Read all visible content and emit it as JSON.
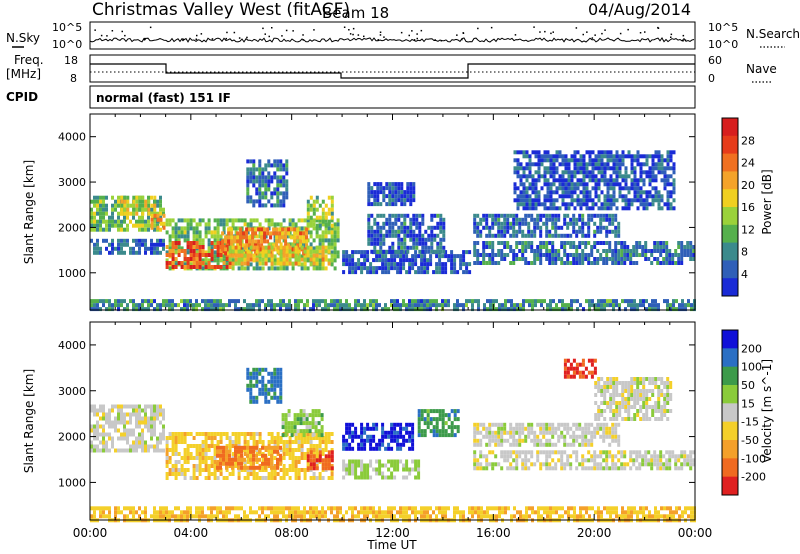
{
  "header": {
    "station": "Christmas Valley West (fitACF)",
    "beam": "Beam 18",
    "date": "04/Aug/2014"
  },
  "noise_panel": {
    "left_label": "N.Sky",
    "right_label": "N.Search",
    "left_ticks": [
      "10^5",
      "10^0"
    ],
    "right_ticks": [
      "10^5",
      "10^0"
    ]
  },
  "freq_panel": {
    "left_label": "Freq.",
    "left_unit": "[MHz]",
    "right_label": "Nave",
    "left_ticks": [
      "18",
      "8"
    ],
    "right_ticks": [
      "60",
      "0"
    ]
  },
  "cpid_panel": {
    "label": "CPID",
    "program": "normal (fast) 151 IF"
  },
  "x_axis": {
    "title": "Time UT",
    "ticks": [
      "00:00",
      "04:00",
      "08:00",
      "12:00",
      "16:00",
      "20:00",
      "00:00"
    ]
  },
  "chart_data": [
    {
      "type": "heatmap",
      "title": "",
      "ylabel": "Slant Range [km]",
      "xlabel": "Time UT",
      "x_range_hours": [
        0,
        24
      ],
      "ylim": [
        180,
        4500
      ],
      "yticks": [
        "1000",
        "2000",
        "3000",
        "4000"
      ],
      "colorbar": {
        "label": "Power [dB]",
        "ticks": [
          "4",
          "8",
          "12",
          "16",
          "20",
          "24",
          "28"
        ],
        "range": [
          0,
          32
        ],
        "colors": [
          "#1a2bd6",
          "#2f5fb8",
          "#3b8a8c",
          "#55b04c",
          "#9ad23a",
          "#f0d020",
          "#f4a32a",
          "#f07020",
          "#e63b1a",
          "#d71e1e"
        ]
      },
      "regions": [
        {
          "t": [
            0.0,
            2.9
          ],
          "r": [
            1950,
            2700
          ],
          "v": 12
        },
        {
          "t": [
            0.0,
            2.9
          ],
          "r": [
            1450,
            1750
          ],
          "v": 5
        },
        {
          "t": [
            1.2,
            2.6
          ],
          "r": [
            2300,
            2700
          ],
          "v": 16
        },
        {
          "t": [
            2.4,
            2.9
          ],
          "r": [
            1950,
            2300
          ],
          "v": 22
        },
        {
          "t": [
            3.0,
            9.8
          ],
          "r": [
            1100,
            2200
          ],
          "v": 12
        },
        {
          "t": [
            3.0,
            5.6
          ],
          "r": [
            1100,
            1700
          ],
          "v": 26
        },
        {
          "t": [
            5.2,
            8.6
          ],
          "r": [
            1450,
            2000
          ],
          "v": 22
        },
        {
          "t": [
            5.5,
            9.6
          ],
          "r": [
            1200,
            1600
          ],
          "v": 18
        },
        {
          "t": [
            6.2,
            7.8
          ],
          "r": [
            2500,
            3500
          ],
          "v": 6
        },
        {
          "t": [
            8.6,
            9.6
          ],
          "r": [
            2000,
            2700
          ],
          "v": 14
        },
        {
          "t": [
            10.0,
            15.0
          ],
          "r": [
            1000,
            1500
          ],
          "v": 4
        },
        {
          "t": [
            11.0,
            14.0
          ],
          "r": [
            1500,
            2300
          ],
          "v": 5
        },
        {
          "t": [
            11.0,
            12.8
          ],
          "r": [
            2500,
            3000
          ],
          "v": 4
        },
        {
          "t": [
            15.2,
            24.0
          ],
          "r": [
            1250,
            1700
          ],
          "v": 6
        },
        {
          "t": [
            15.2,
            21.0
          ],
          "r": [
            1800,
            2300
          ],
          "v": 5
        },
        {
          "t": [
            16.8,
            23.2
          ],
          "r": [
            2400,
            3700
          ],
          "v": 4
        },
        {
          "t": [
            0.0,
            24.0
          ],
          "r": [
            200,
            420
          ],
          "v": 8
        }
      ]
    },
    {
      "type": "heatmap",
      "title": "",
      "ylabel": "Slant Range [km]",
      "xlabel": "Time UT",
      "x_range_hours": [
        0,
        24
      ],
      "ylim": [
        180,
        4500
      ],
      "yticks": [
        "1000",
        "2000",
        "3000",
        "4000"
      ],
      "colorbar": {
        "label": "Velocity [m s^-1]",
        "ticks": [
          "200",
          "100",
          "50",
          "15",
          "-15",
          "-50",
          "-100",
          "-200"
        ],
        "range": [
          -250,
          250
        ],
        "colors": [
          "#1010d8",
          "#2a6fc4",
          "#3c9a4a",
          "#8acb3a",
          "#c8c8c8",
          "#f4d02a",
          "#f4a02a",
          "#f06a20",
          "#e02020"
        ]
      },
      "regions": [
        {
          "t": [
            0.0,
            2.9
          ],
          "r": [
            1700,
            2700
          ],
          "v": 0
        },
        {
          "t": [
            3.0,
            9.6
          ],
          "r": [
            1100,
            2100
          ],
          "v": -60
        },
        {
          "t": [
            5.0,
            7.6
          ],
          "r": [
            1300,
            1800
          ],
          "v": -150
        },
        {
          "t": [
            8.6,
            9.6
          ],
          "r": [
            1300,
            1700
          ],
          "v": -200
        },
        {
          "t": [
            6.2,
            7.6
          ],
          "r": [
            2800,
            3500
          ],
          "v": 150
        },
        {
          "t": [
            7.6,
            9.2
          ],
          "r": [
            2000,
            2600
          ],
          "v": 60
        },
        {
          "t": [
            10.0,
            12.8
          ],
          "r": [
            1700,
            2300
          ],
          "v": 210
        },
        {
          "t": [
            10.0,
            13.0
          ],
          "r": [
            1150,
            1500
          ],
          "v": 40
        },
        {
          "t": [
            13.0,
            14.6
          ],
          "r": [
            2000,
            2600
          ],
          "v": 120
        },
        {
          "t": [
            15.2,
            24.0
          ],
          "r": [
            1300,
            1700
          ],
          "v": 0
        },
        {
          "t": [
            15.2,
            21.0
          ],
          "r": [
            1800,
            2300
          ],
          "v": 0
        },
        {
          "t": [
            18.8,
            20.0
          ],
          "r": [
            3300,
            3700
          ],
          "v": -200
        },
        {
          "t": [
            20.0,
            23.0
          ],
          "r": [
            2400,
            3300
          ],
          "v": 0
        },
        {
          "t": [
            0.0,
            24.0
          ],
          "r": [
            200,
            480
          ],
          "v": -70
        }
      ]
    }
  ]
}
